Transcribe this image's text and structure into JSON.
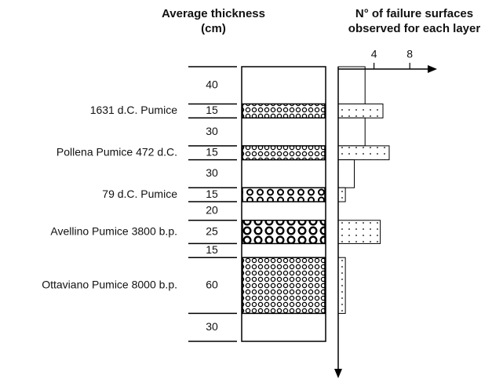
{
  "header": {
    "thickness_title": [
      "Average thickness",
      "(cm)"
    ],
    "failures_title": [
      "N° of failure surfaces",
      "observed for each layer"
    ]
  },
  "axis": {
    "xlim": [
      0,
      10
    ],
    "xticks": [
      4,
      8
    ]
  },
  "layers": [
    {
      "thickness": 40,
      "failures": 3
    },
    {
      "name": "1631 d.C. Pumice",
      "thickness": 15,
      "failures": 5,
      "pattern": "fine"
    },
    {
      "thickness": 30,
      "failures": 3
    },
    {
      "name": "Pollena Pumice 472 d.C.",
      "thickness": 15,
      "failures": 5.7,
      "pattern": "fine"
    },
    {
      "thickness": 30,
      "failures": 1.8
    },
    {
      "name": "79 d.C. Pumice",
      "thickness": 15,
      "failures": 0.8,
      "pattern": "medium"
    },
    {
      "thickness": 20,
      "failures": 0
    },
    {
      "name": "Avellino Pumice 3800 b.p.",
      "thickness": 25,
      "failures": 4.7,
      "pattern": "coarse"
    },
    {
      "thickness": 15,
      "failures": 0
    },
    {
      "name": "Ottaviano Pumice 8000 b.p.",
      "thickness": 60,
      "failures": 0.8,
      "pattern": "fine"
    },
    {
      "thickness": 30,
      "failures": 0
    }
  ]
}
